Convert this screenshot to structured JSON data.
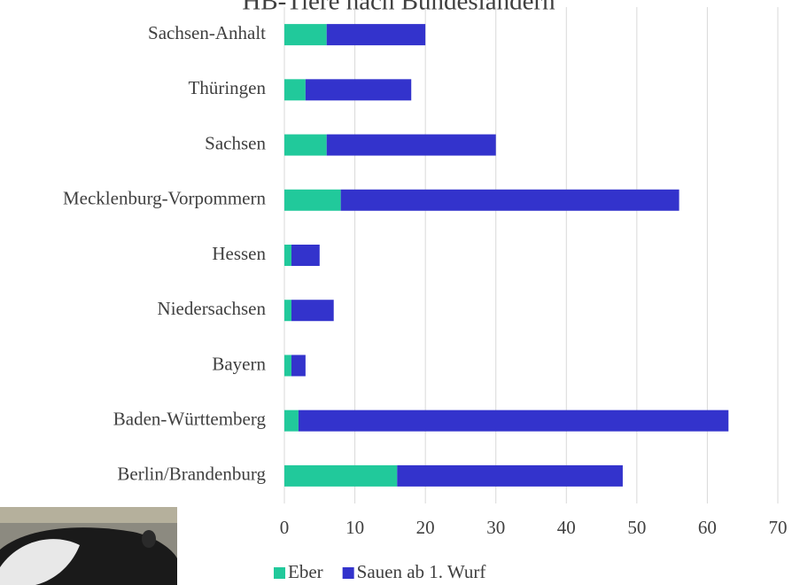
{
  "chart_data": {
    "type": "stacked-bar-horizontal",
    "title": "HB-Tiere nach Bundesländern",
    "categories": [
      "Sachsen-Anhalt",
      "Thüringen",
      "Sachsen",
      "Mecklenburg-Vorpommern",
      "Hessen",
      "Niedersachsen",
      "Bayern",
      "Baden-Württemberg",
      "Berlin/Brandenburg"
    ],
    "series": [
      {
        "name": "Eber",
        "color": "#21c99b",
        "values": [
          6,
          3,
          6,
          8,
          1,
          1,
          1,
          2,
          16
        ]
      },
      {
        "name": "Sauen ab 1. Wurf",
        "color": "#3333cc",
        "values": [
          14,
          15,
          24,
          48,
          4,
          6,
          2,
          61,
          32
        ]
      }
    ],
    "xlim": [
      0,
      70
    ],
    "xticks": [
      0,
      10,
      20,
      30,
      40,
      50,
      60,
      70
    ],
    "grid": true,
    "legend": "bottom"
  }
}
